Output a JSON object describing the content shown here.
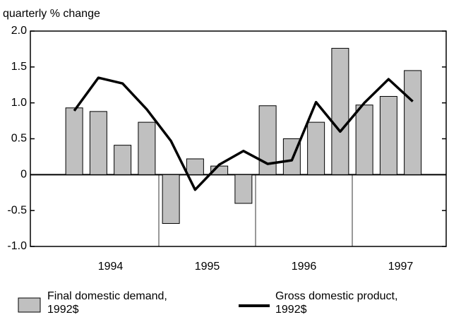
{
  "chart_data": {
    "type": "bar",
    "y_label": "quarterly % change",
    "categories": [
      null,
      null,
      null,
      null,
      null,
      null,
      null,
      null,
      null,
      null,
      null,
      null,
      null,
      null,
      null,
      null
    ],
    "year_labels": [
      "1994",
      "1995",
      "1996",
      "1997"
    ],
    "series": [
      {
        "name": "Final domestic demand, 1992$",
        "type": "bar",
        "color": "#c0c0c0",
        "values": [
          0.93,
          0.88,
          0.41,
          0.73,
          -0.68,
          0.22,
          0.12,
          -0.4,
          0.96,
          0.5,
          0.73,
          1.76,
          0.97,
          1.09,
          1.45,
          null
        ]
      },
      {
        "name": "Gross domestic product, 1992$",
        "type": "line",
        "color": "#000000",
        "values": [
          0.89,
          1.35,
          1.27,
          0.91,
          0.47,
          -0.21,
          0.14,
          0.33,
          0.15,
          0.2,
          1.01,
          0.6,
          1.0,
          1.33,
          1.02,
          null
        ]
      }
    ],
    "ylim": [
      -1,
      2
    ],
    "yticks": [
      {
        "value": 2,
        "label": "2.0"
      },
      1.5,
      {
        "value": 1,
        "label": "1.0"
      },
      0.5,
      0,
      -0.5,
      {
        "value": -1,
        "label": "-1.0"
      }
    ]
  }
}
